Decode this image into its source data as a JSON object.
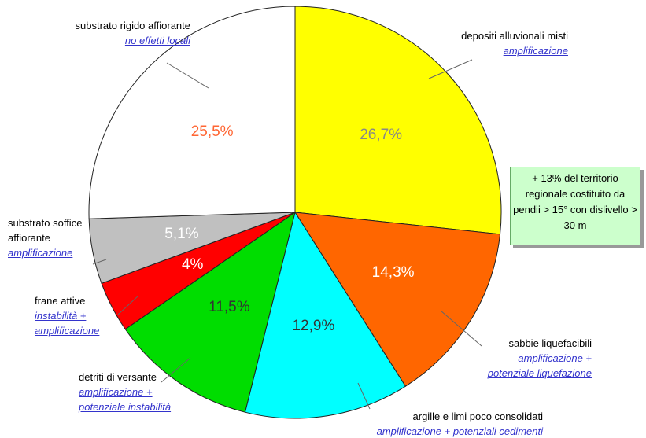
{
  "chart_data": {
    "type": "pie",
    "categories": [
      "depositi alluvionali misti",
      "sabbie liquefacibili",
      "argille e limi poco consolidati",
      "detriti di versante",
      "frane attive",
      "substrato soffice affiorante",
      "substrato rigido affiorante"
    ],
    "effects": [
      "amplificazione",
      "amplificazione + potenziale liquefazione",
      "amplificazione + potenziali cedimenti",
      "amplificazione + potenziale instabilità",
      "instabilità + amplificazione",
      "amplificazione",
      "no effetti locali"
    ],
    "values": [
      26.7,
      14.3,
      12.9,
      11.5,
      4,
      5.1,
      25.5
    ],
    "value_labels": [
      "26,7%",
      "14,3%",
      "12,9%",
      "11,5%",
      "4%",
      "5,1%",
      "25,5%"
    ],
    "colors": [
      "#ffff00",
      "#ff6600",
      "#00ffff",
      "#00dd00",
      "#ff0000",
      "#c0c0c0",
      "#ffffff"
    ],
    "label_colors": [
      "#888888",
      "#ffffff",
      "#333333",
      "#333333",
      "#ffffff",
      "#ffffff",
      "#ff6633"
    ],
    "annotation": "+ 13% del territorio regionale costituito da pendii > 15° con dislivello > 30 m"
  }
}
